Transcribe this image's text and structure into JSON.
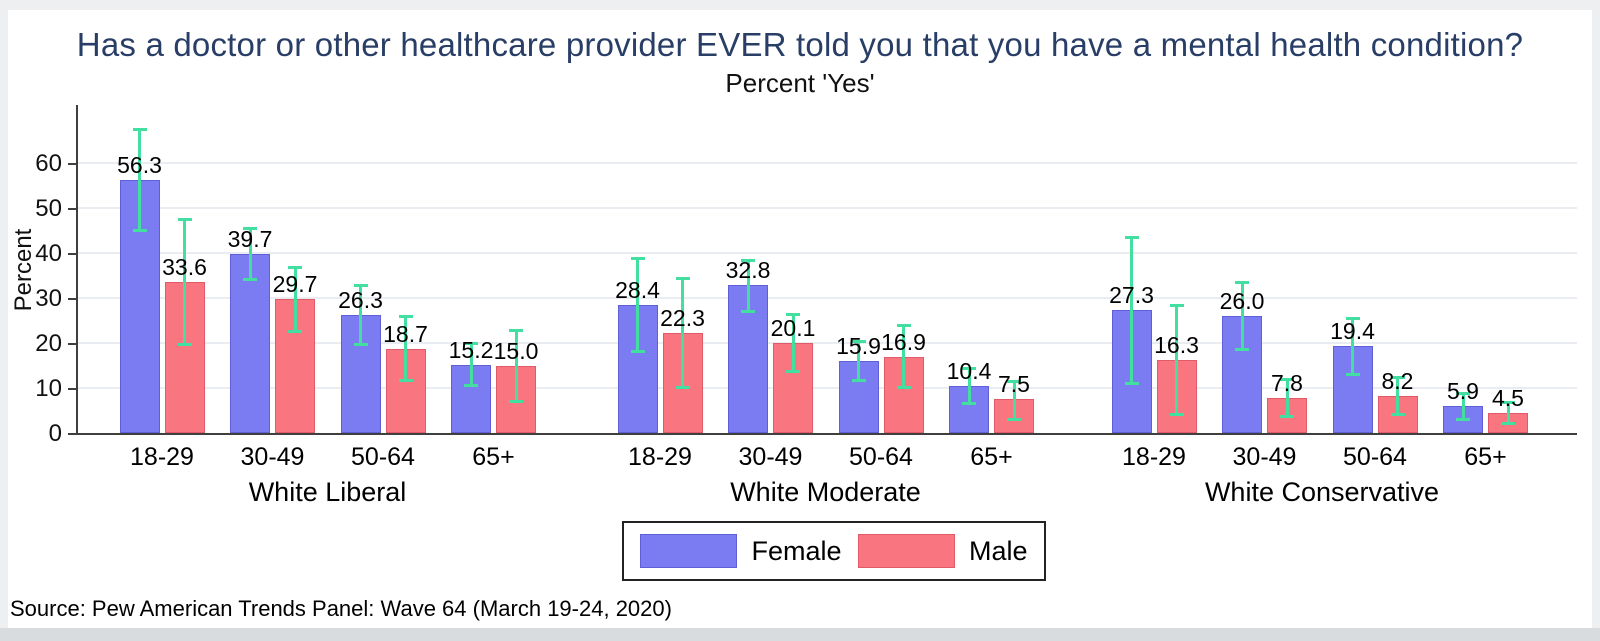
{
  "title": "Has a doctor or other healthcare provider EVER told you that you have a mental health condition?",
  "subtitle": "Percent 'Yes'",
  "source": "Source: Pew American Trends Panel: Wave 64 (March 19-24, 2020)",
  "colors": {
    "female_fill": "#7b7cf2",
    "female_border": "#5f60d8",
    "male_fill": "#f9757f",
    "male_border": "#e05a68",
    "error_bar": "#42dfa1",
    "title_text": "#293e66",
    "axis": "#3f3f3f",
    "gridline": "#e9edf1",
    "page_border": "#edeff1",
    "bottom_strip": "#d9dcdf"
  },
  "chart_data": {
    "type": "bar",
    "title": "Has a doctor or other healthcare provider EVER told you that you have a mental health condition?",
    "subtitle": "Percent 'Yes'",
    "ylabel": "Percent",
    "yticks": [
      0,
      10,
      20,
      30,
      40,
      50,
      60
    ],
    "ylim": [
      0,
      73
    ],
    "grid": true,
    "error_bars": true,
    "legend": {
      "position": "bottom-center",
      "entries": [
        {
          "label": "Female"
        },
        {
          "label": "Male"
        }
      ]
    },
    "groups": [
      {
        "label": "White Liberal",
        "categories": [
          "18-29",
          "30-49",
          "50-64",
          "65+"
        ],
        "series": [
          {
            "name": "Female",
            "values": [
              56.3,
              39.7,
              26.3,
              15.2
            ],
            "ci_low": [
              45.0,
              34.0,
              19.5,
              10.5
            ],
            "ci_high": [
              67.5,
              45.5,
              33.0,
              20.0
            ]
          },
          {
            "name": "Male",
            "values": [
              33.6,
              29.7,
              18.7,
              15.0
            ],
            "ci_low": [
              19.5,
              22.5,
              11.5,
              7.0
            ],
            "ci_high": [
              47.5,
              37.0,
              26.0,
              23.0
            ]
          }
        ]
      },
      {
        "label": "White Moderate",
        "categories": [
          "18-29",
          "30-49",
          "50-64",
          "65+"
        ],
        "series": [
          {
            "name": "Female",
            "values": [
              28.4,
              32.8,
              15.9,
              10.4
            ],
            "ci_low": [
              18.0,
              27.0,
              11.5,
              6.5
            ],
            "ci_high": [
              39.0,
              38.5,
              20.5,
              14.5
            ]
          },
          {
            "name": "Male",
            "values": [
              22.3,
              20.1,
              16.9,
              7.5
            ],
            "ci_low": [
              10.0,
              13.5,
              10.0,
              3.0
            ],
            "ci_high": [
              34.5,
              26.5,
              24.0,
              11.5
            ]
          }
        ]
      },
      {
        "label": "White Conservative",
        "categories": [
          "18-29",
          "30-49",
          "50-64",
          "65+"
        ],
        "series": [
          {
            "name": "Female",
            "values": [
              27.3,
              26.0,
              19.4,
              5.9
            ],
            "ci_low": [
              11.0,
              18.5,
              13.0,
              3.0
            ],
            "ci_high": [
              43.5,
              33.5,
              25.5,
              9.0
            ]
          },
          {
            "name": "Male",
            "values": [
              16.3,
              7.8,
              8.2,
              4.5
            ],
            "ci_low": [
              4.0,
              3.5,
              4.0,
              2.0
            ],
            "ci_high": [
              28.5,
              12.0,
              12.5,
              7.0
            ]
          }
        ]
      }
    ]
  }
}
